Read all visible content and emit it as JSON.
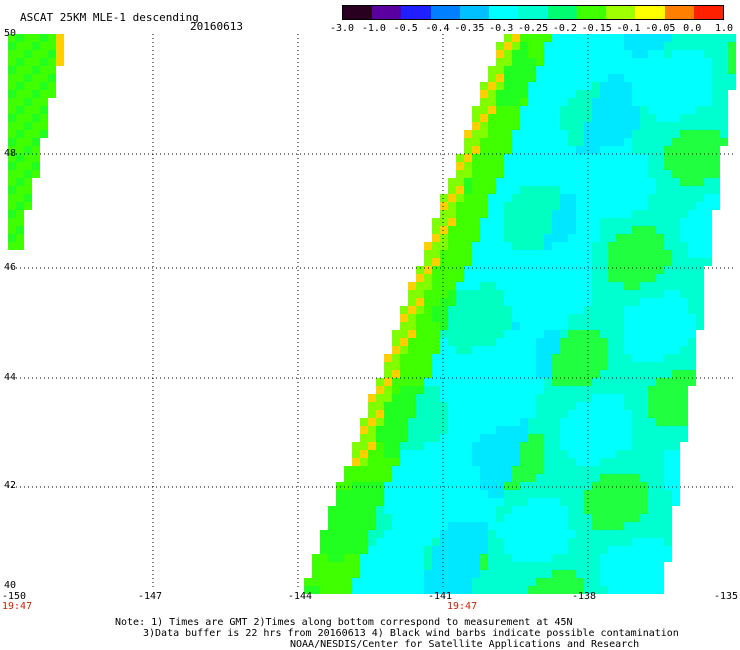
{
  "header": {
    "title": "ASCAT 25KM MLE-1 descending",
    "date": "20160613"
  },
  "colorbar": {
    "tick_labels": [
      "-3.0",
      "-1.0",
      "-0.5",
      "-0.4",
      "-0.35",
      "-0.3",
      "-0.25",
      "-0.2",
      "-0.15",
      "-0.1",
      "-0.05",
      "0.0",
      "1.0"
    ],
    "colors": [
      "#2a0020",
      "#5a00a0",
      "#2020ff",
      "#0080ff",
      "#00c0ff",
      "#00ffff",
      "#00ffd0",
      "#00ff70",
      "#40ff00",
      "#a0ff00",
      "#ffff00",
      "#ff8000",
      "#ff2000"
    ]
  },
  "map": {
    "lat_labels": [
      "50",
      "48",
      "46",
      "44",
      "42",
      "40"
    ],
    "lon_labels": [
      "-150",
      "-147",
      "-144",
      "-141",
      "-138",
      "-135"
    ],
    "time_left": "19:47",
    "time_mid": "19:47"
  },
  "footer": {
    "line1": "Note: 1) Times are GMT 2)Times along bottom correspond to measurement at 45N",
    "line2": "3)Data buffer is 22 hrs from 20160613 4) Black wind barbs indicate possible contamination",
    "line3": "NOAA/NESDIS/Center for Satellite Applications and Research"
  },
  "colors": {
    "grid": "#000000",
    "time_label": "#cc2200"
  }
}
